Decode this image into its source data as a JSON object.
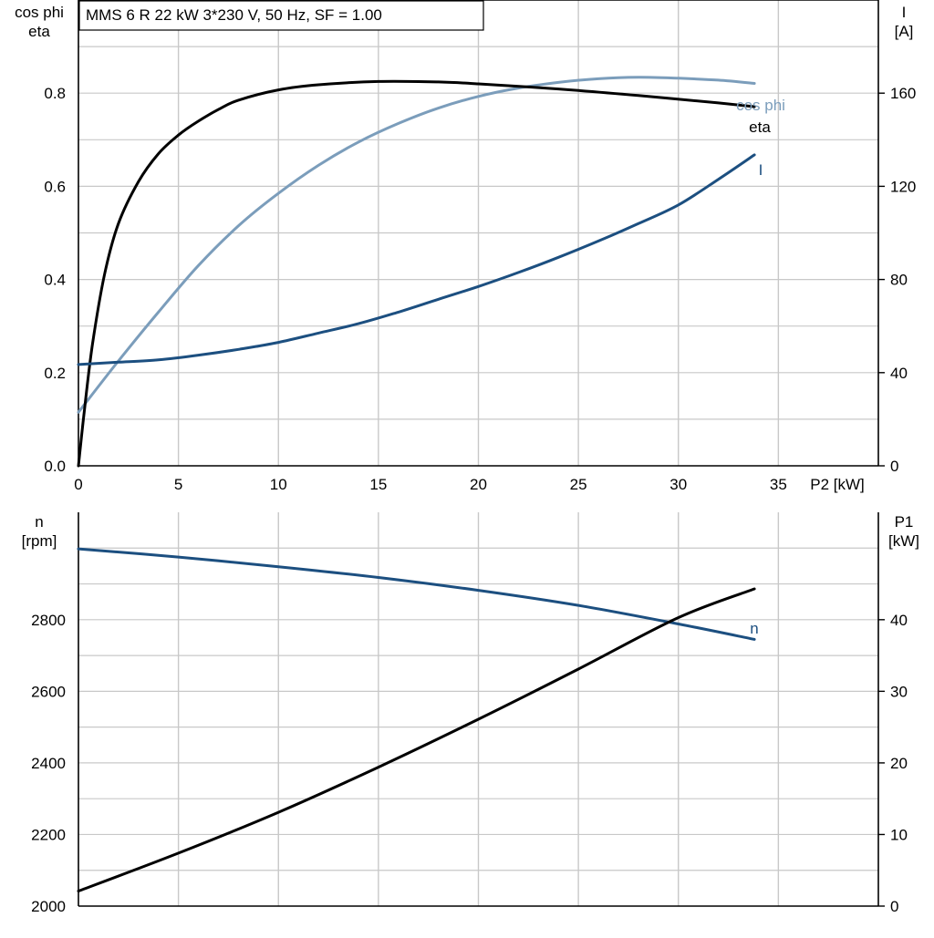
{
  "chart_data": [
    {
      "type": "line",
      "title": "MMS 6 R   22 kW   3*230 V, 50 Hz, SF = 1.00",
      "xlabel": "P2 [kW]",
      "xlim": [
        0,
        40
      ],
      "x_ticks": [
        0,
        5,
        10,
        15,
        20,
        25,
        30,
        35
      ],
      "x_tick_labels": [
        "0",
        "5",
        "10",
        "15",
        "20",
        "25",
        "30",
        "35"
      ],
      "ylabel_left": [
        "cos phi",
        "eta"
      ],
      "ylim_left": [
        0,
        1.0
      ],
      "y_ticks_left": [
        0.0,
        0.2,
        0.4,
        0.6,
        0.8
      ],
      "y_tick_labels_left": [
        "0.0",
        "0.2",
        "0.4",
        "0.6",
        "0.8"
      ],
      "ylabel_right": [
        "I",
        "[A]"
      ],
      "ylim_right": [
        0,
        200
      ],
      "y_ticks_right": [
        0,
        40,
        80,
        120,
        160
      ],
      "y_tick_labels_right": [
        "0",
        "40",
        "80",
        "120",
        "160"
      ],
      "grid": true,
      "series": [
        {
          "name": "cos phi",
          "axis": "left",
          "color": "#7b9dbb",
          "x": [
            0,
            2,
            4,
            6,
            8,
            10,
            12,
            14,
            16,
            18,
            20,
            22,
            24,
            26,
            28,
            30,
            32,
            33.8
          ],
          "y": [
            0.115,
            0.225,
            0.33,
            0.43,
            0.515,
            0.585,
            0.645,
            0.695,
            0.735,
            0.768,
            0.793,
            0.811,
            0.823,
            0.831,
            0.834,
            0.832,
            0.828,
            0.821
          ]
        },
        {
          "name": "eta",
          "axis": "left",
          "color": "#000000",
          "x": [
            0,
            0.3,
            0.7,
            1.3,
            2,
            3,
            4,
            5,
            6,
            7,
            8,
            10,
            12,
            15,
            18,
            20,
            24,
            28,
            32,
            33.8
          ],
          "y": [
            0.0,
            0.12,
            0.26,
            0.41,
            0.52,
            0.61,
            0.67,
            0.71,
            0.74,
            0.765,
            0.785,
            0.807,
            0.818,
            0.825,
            0.824,
            0.82,
            0.809,
            0.795,
            0.779,
            0.771
          ]
        },
        {
          "name": "I",
          "axis": "right",
          "color": "#1c4f80",
          "x": [
            0,
            2,
            4,
            6,
            8,
            10,
            12,
            14,
            16,
            18,
            20,
            22,
            24,
            26,
            28,
            30,
            32,
            33.8
          ],
          "y": [
            43.5,
            44.5,
            45.5,
            47.5,
            50,
            53,
            57,
            61,
            66,
            71.5,
            77,
            83,
            89.5,
            96.5,
            104,
            112,
            123,
            133.5
          ]
        }
      ]
    },
    {
      "type": "line",
      "xlim": [
        0,
        40
      ],
      "x_ticks": [
        0,
        5,
        10,
        15,
        20,
        25,
        30,
        35
      ],
      "ylabel_left": [
        "n",
        "[rpm]"
      ],
      "ylim_left": [
        2000,
        3100
      ],
      "y_ticks_left": [
        2000,
        2200,
        2400,
        2600,
        2800
      ],
      "y_tick_labels_left": [
        "2000",
        "2200",
        "2400",
        "2600",
        "2800"
      ],
      "ylabel_right": [
        "P1",
        "[kW]"
      ],
      "ylim_right": [
        0,
        55
      ],
      "y_ticks_right": [
        0,
        10,
        20,
        30,
        40
      ],
      "y_tick_labels_right": [
        "0",
        "10",
        "20",
        "30",
        "40"
      ],
      "grid": true,
      "series": [
        {
          "name": "n",
          "axis": "left",
          "color": "#1c4f80",
          "x": [
            0,
            5,
            10,
            15,
            20,
            25,
            30,
            33.8
          ],
          "y": [
            2998,
            2975,
            2948,
            2918,
            2882,
            2840,
            2788,
            2745
          ]
        },
        {
          "name": "",
          "axis": "right",
          "color": "#000000",
          "x": [
            0,
            5,
            10,
            15,
            20,
            25,
            30,
            33.8
          ],
          "y": [
            2.1,
            7.4,
            13.1,
            19.4,
            26.1,
            33.1,
            40.3,
            44.3
          ]
        }
      ]
    }
  ]
}
